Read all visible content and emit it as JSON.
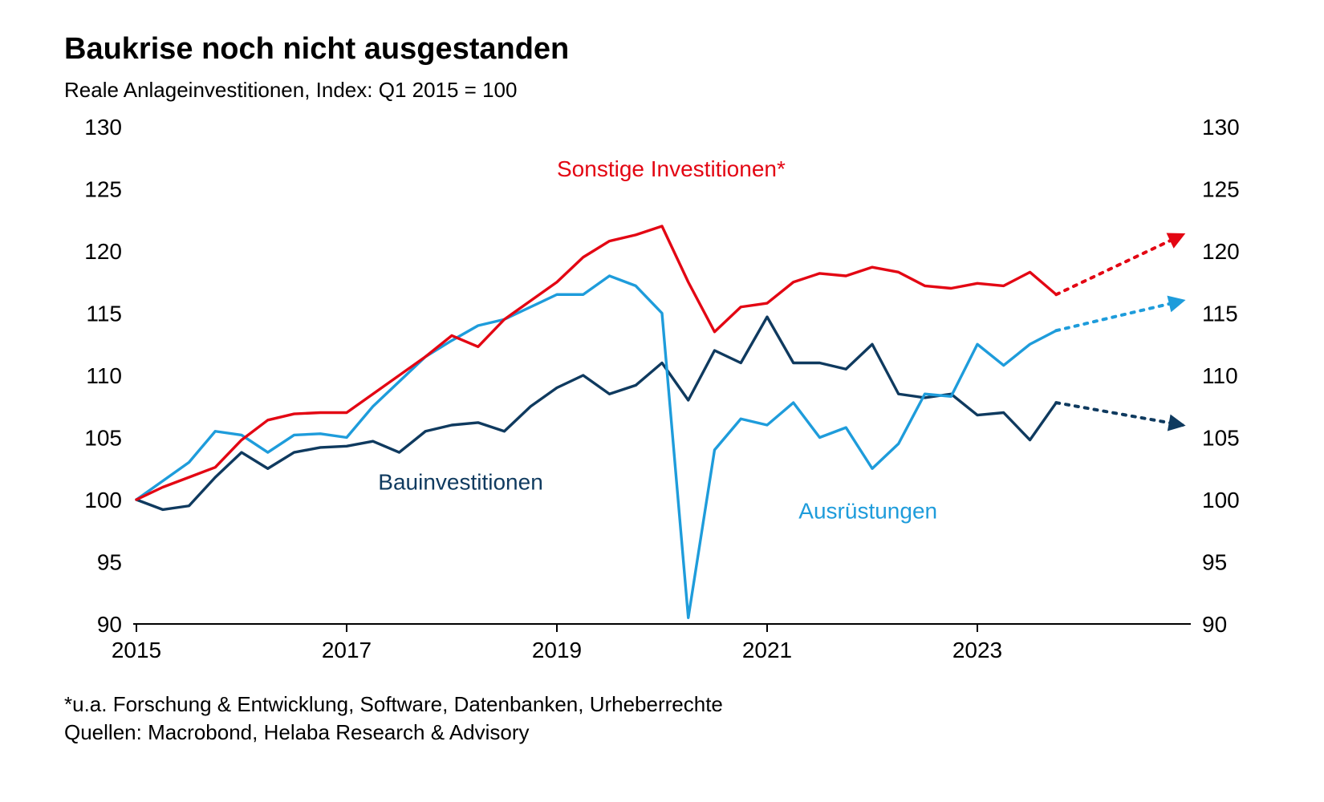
{
  "title": "Baukrise noch nicht ausgestanden",
  "subtitle": "Reale Anlageinvestitionen, Index: Q1 2015 = 100",
  "footnote_line1": "*u.a. Forschung & Entwicklung, Software, Datenbanken, Urheberrechte",
  "footnote_line2": "Quellen: Macrobond, Helaba Research & Advisory",
  "chart": {
    "type": "line",
    "background_color": "#ffffff",
    "ylim": [
      90,
      130
    ],
    "ytick_step": 5,
    "yticks": [
      90,
      95,
      100,
      105,
      110,
      115,
      120,
      125,
      130
    ],
    "xlim": [
      2015,
      2025
    ],
    "xticks": [
      2015,
      2017,
      2019,
      2021,
      2023
    ],
    "line_width": 3.4,
    "forecast_start_x": 2023.75,
    "forecast_dash": "4 8",
    "arrow_size": 14,
    "axis_color": "#000000",
    "axis_fontsize": 28,
    "title_fontsize": 38,
    "subtitle_fontsize": 26,
    "footnote_fontsize": 26,
    "series": {
      "sonstige": {
        "label": "Sonstige Investitionen*",
        "color": "#e30613",
        "label_pos": {
          "x": 2019.0,
          "y": 126.0
        },
        "points": [
          {
            "x": 2015.0,
            "y": 100.0
          },
          {
            "x": 2015.25,
            "y": 101.0
          },
          {
            "x": 2015.5,
            "y": 101.8
          },
          {
            "x": 2015.75,
            "y": 102.6
          },
          {
            "x": 2016.0,
            "y": 104.8
          },
          {
            "x": 2016.25,
            "y": 106.4
          },
          {
            "x": 2016.5,
            "y": 106.9
          },
          {
            "x": 2016.75,
            "y": 107.0
          },
          {
            "x": 2017.0,
            "y": 107.0
          },
          {
            "x": 2017.25,
            "y": 108.5
          },
          {
            "x": 2017.5,
            "y": 110.0
          },
          {
            "x": 2017.75,
            "y": 111.5
          },
          {
            "x": 2018.0,
            "y": 113.2
          },
          {
            "x": 2018.25,
            "y": 112.3
          },
          {
            "x": 2018.5,
            "y": 114.5
          },
          {
            "x": 2018.75,
            "y": 116.0
          },
          {
            "x": 2019.0,
            "y": 117.5
          },
          {
            "x": 2019.25,
            "y": 119.5
          },
          {
            "x": 2019.5,
            "y": 120.8
          },
          {
            "x": 2019.75,
            "y": 121.3
          },
          {
            "x": 2020.0,
            "y": 122.0
          },
          {
            "x": 2020.25,
            "y": 117.5
          },
          {
            "x": 2020.5,
            "y": 113.5
          },
          {
            "x": 2020.75,
            "y": 115.5
          },
          {
            "x": 2021.0,
            "y": 115.8
          },
          {
            "x": 2021.25,
            "y": 117.5
          },
          {
            "x": 2021.5,
            "y": 118.2
          },
          {
            "x": 2021.75,
            "y": 118.0
          },
          {
            "x": 2022.0,
            "y": 118.7
          },
          {
            "x": 2022.25,
            "y": 118.3
          },
          {
            "x": 2022.5,
            "y": 117.2
          },
          {
            "x": 2022.75,
            "y": 117.0
          },
          {
            "x": 2023.0,
            "y": 117.4
          },
          {
            "x": 2023.25,
            "y": 117.2
          },
          {
            "x": 2023.5,
            "y": 118.3
          },
          {
            "x": 2023.75,
            "y": 116.5
          }
        ],
        "forecast": [
          {
            "x": 2023.75,
            "y": 116.5
          },
          {
            "x": 2024.95,
            "y": 121.3
          }
        ]
      },
      "ausruestungen": {
        "label": "Ausrüstungen",
        "color": "#1e9cdb",
        "label_pos": {
          "x": 2021.3,
          "y": 98.5
        },
        "points": [
          {
            "x": 2015.0,
            "y": 100.0
          },
          {
            "x": 2015.25,
            "y": 101.5
          },
          {
            "x": 2015.5,
            "y": 103.0
          },
          {
            "x": 2015.75,
            "y": 105.5
          },
          {
            "x": 2016.0,
            "y": 105.2
          },
          {
            "x": 2016.25,
            "y": 103.8
          },
          {
            "x": 2016.5,
            "y": 105.2
          },
          {
            "x": 2016.75,
            "y": 105.3
          },
          {
            "x": 2017.0,
            "y": 105.0
          },
          {
            "x": 2017.25,
            "y": 107.5
          },
          {
            "x": 2017.5,
            "y": 109.5
          },
          {
            "x": 2017.75,
            "y": 111.5
          },
          {
            "x": 2018.0,
            "y": 112.8
          },
          {
            "x": 2018.25,
            "y": 114.0
          },
          {
            "x": 2018.5,
            "y": 114.5
          },
          {
            "x": 2018.75,
            "y": 115.5
          },
          {
            "x": 2019.0,
            "y": 116.5
          },
          {
            "x": 2019.25,
            "y": 116.5
          },
          {
            "x": 2019.5,
            "y": 118.0
          },
          {
            "x": 2019.75,
            "y": 117.2
          },
          {
            "x": 2020.0,
            "y": 115.0
          },
          {
            "x": 2020.25,
            "y": 90.5
          },
          {
            "x": 2020.5,
            "y": 104.0
          },
          {
            "x": 2020.75,
            "y": 106.5
          },
          {
            "x": 2021.0,
            "y": 106.0
          },
          {
            "x": 2021.25,
            "y": 107.8
          },
          {
            "x": 2021.5,
            "y": 105.0
          },
          {
            "x": 2021.75,
            "y": 105.8
          },
          {
            "x": 2022.0,
            "y": 102.5
          },
          {
            "x": 2022.25,
            "y": 104.5
          },
          {
            "x": 2022.5,
            "y": 108.5
          },
          {
            "x": 2022.75,
            "y": 108.3
          },
          {
            "x": 2023.0,
            "y": 112.5
          },
          {
            "x": 2023.25,
            "y": 110.8
          },
          {
            "x": 2023.5,
            "y": 112.5
          },
          {
            "x": 2023.75,
            "y": 113.6
          }
        ],
        "forecast": [
          {
            "x": 2023.75,
            "y": 113.6
          },
          {
            "x": 2024.95,
            "y": 116.0
          }
        ]
      },
      "bau": {
        "label": "Bauinvestitionen",
        "color": "#0f3a5f",
        "label_pos": {
          "x": 2017.3,
          "y": 100.8
        },
        "points": [
          {
            "x": 2015.0,
            "y": 100.0
          },
          {
            "x": 2015.25,
            "y": 99.2
          },
          {
            "x": 2015.5,
            "y": 99.5
          },
          {
            "x": 2015.75,
            "y": 101.8
          },
          {
            "x": 2016.0,
            "y": 103.8
          },
          {
            "x": 2016.25,
            "y": 102.5
          },
          {
            "x": 2016.5,
            "y": 103.8
          },
          {
            "x": 2016.75,
            "y": 104.2
          },
          {
            "x": 2017.0,
            "y": 104.3
          },
          {
            "x": 2017.25,
            "y": 104.7
          },
          {
            "x": 2017.5,
            "y": 103.8
          },
          {
            "x": 2017.75,
            "y": 105.5
          },
          {
            "x": 2018.0,
            "y": 106.0
          },
          {
            "x": 2018.25,
            "y": 106.2
          },
          {
            "x": 2018.5,
            "y": 105.5
          },
          {
            "x": 2018.75,
            "y": 107.5
          },
          {
            "x": 2019.0,
            "y": 109.0
          },
          {
            "x": 2019.25,
            "y": 110.0
          },
          {
            "x": 2019.5,
            "y": 108.5
          },
          {
            "x": 2019.75,
            "y": 109.2
          },
          {
            "x": 2020.0,
            "y": 111.0
          },
          {
            "x": 2020.25,
            "y": 108.0
          },
          {
            "x": 2020.5,
            "y": 112.0
          },
          {
            "x": 2020.75,
            "y": 111.0
          },
          {
            "x": 2021.0,
            "y": 114.7
          },
          {
            "x": 2021.25,
            "y": 111.0
          },
          {
            "x": 2021.5,
            "y": 111.0
          },
          {
            "x": 2021.75,
            "y": 110.5
          },
          {
            "x": 2022.0,
            "y": 112.5
          },
          {
            "x": 2022.25,
            "y": 108.5
          },
          {
            "x": 2022.5,
            "y": 108.2
          },
          {
            "x": 2022.75,
            "y": 108.5
          },
          {
            "x": 2023.0,
            "y": 106.8
          },
          {
            "x": 2023.25,
            "y": 107.0
          },
          {
            "x": 2023.5,
            "y": 104.8
          },
          {
            "x": 2023.75,
            "y": 107.8
          }
        ],
        "forecast": [
          {
            "x": 2023.75,
            "y": 107.8
          },
          {
            "x": 2024.95,
            "y": 106.0
          }
        ]
      }
    }
  }
}
